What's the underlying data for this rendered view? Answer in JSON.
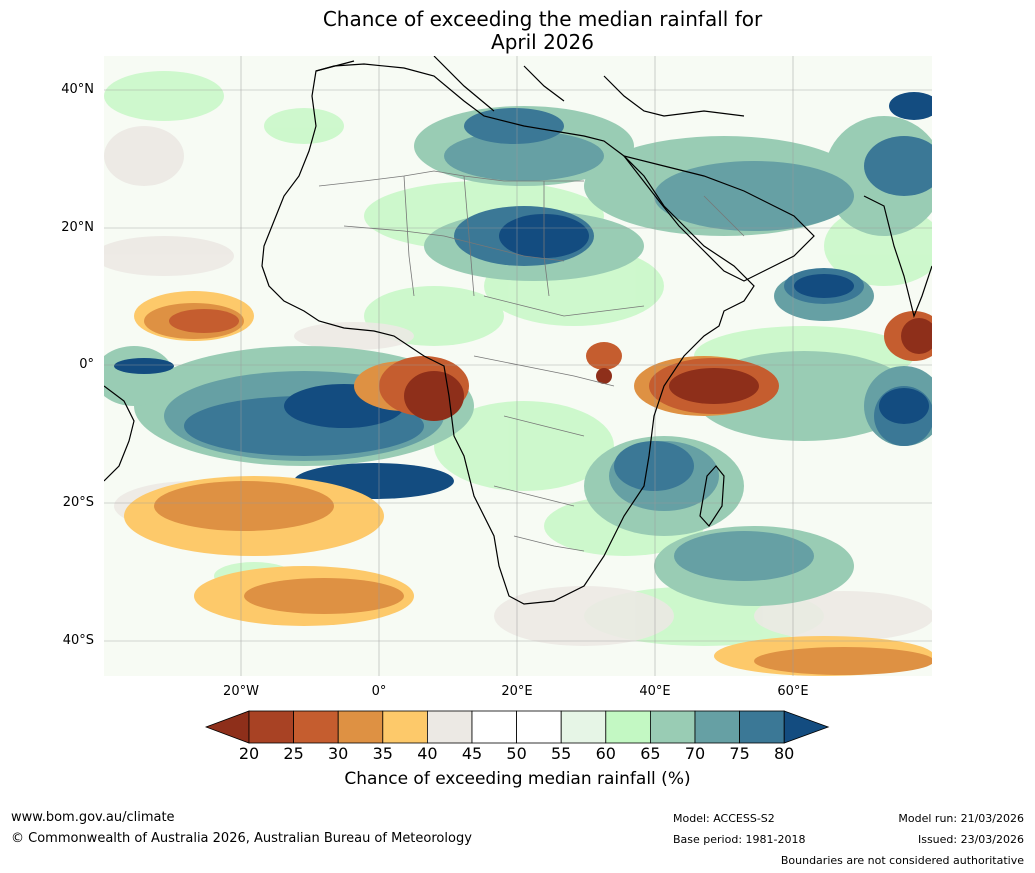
{
  "title_line1": "Chance of exceeding the median rainfall for",
  "title_line2": "April 2026",
  "lat_labels": [
    "40°N",
    "20°N",
    "0°",
    "20°S",
    "40°S"
  ],
  "lon_labels": [
    "20°W",
    "0°",
    "20°E",
    "40°E",
    "60°E"
  ],
  "colorbar": {
    "ticks": [
      "20",
      "25",
      "30",
      "35",
      "40",
      "45",
      "50",
      "55",
      "60",
      "65",
      "70",
      "75",
      "80"
    ],
    "colors": [
      "#8e2f1a",
      "#a84224",
      "#c55d2f",
      "#de9143",
      "#fdc96a",
      "#ece9e4",
      "#ffffff",
      "#ffffff",
      "#e6f5e6",
      "#c3f8c3",
      "#99ccb4",
      "#66a0a4",
      "#3b7896",
      "#134c80"
    ],
    "title": "Chance of exceeding median rainfall (%)"
  },
  "footer": {
    "website": "www.bom.gov.au/climate",
    "copyright": "© Commonwealth of Australia 2026, Australian Bureau of Meteorology",
    "model": "Model: ACCESS-S2",
    "base_period": "Base period: 1981-2018",
    "model_run": "Model run: 21/03/2026",
    "issued": "Issued: 23/03/2026",
    "boundaries_note": "Boundaries are not considered authoritative"
  }
}
